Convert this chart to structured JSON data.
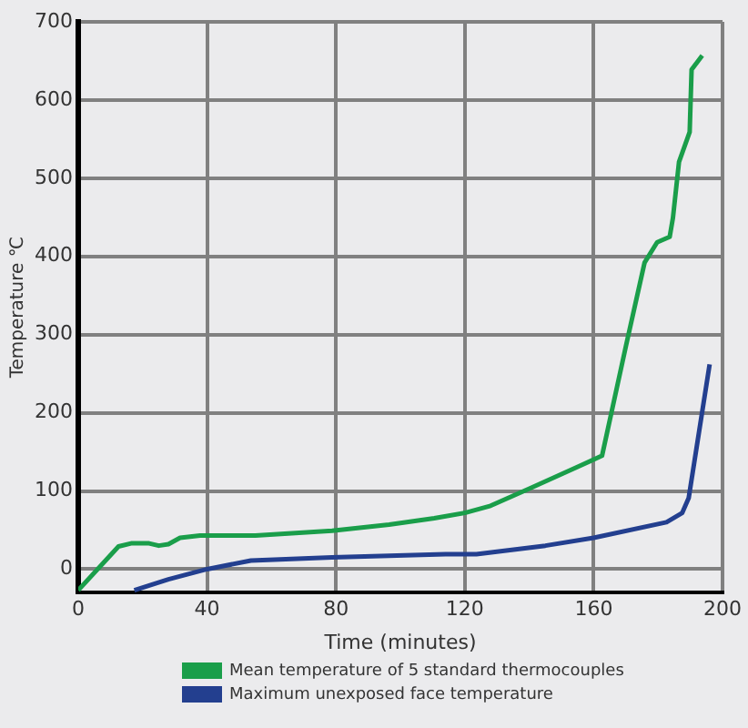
{
  "chart_data": {
    "type": "line",
    "xlabel": "Time (minutes)",
    "ylabel": "Temperature ℃",
    "xlim": [
      0,
      200
    ],
    "xticks": [
      0,
      40,
      80,
      120,
      160,
      200
    ],
    "ylim": [
      -30,
      700
    ],
    "yticks": [
      0,
      100,
      200,
      300,
      400,
      500,
      600,
      700
    ],
    "grid": true,
    "legend": "bottom",
    "marker": "none",
    "line_style": "solid",
    "series": [
      {
        "name": "Mean temperature of 5 standard thermocouples",
        "color": "#1a9e4a",
        "x": [
          0,
          12.5,
          16.4,
          22,
          25,
          28,
          31.6,
          37.8,
          55,
          78.8,
          96.5,
          110.5,
          120,
          128,
          140,
          153,
          162.6,
          170,
          175.8,
          179.7,
          183.6,
          184.6,
          186.5,
          189.8,
          190.4,
          193.7
        ],
        "values": [
          -27,
          29,
          33,
          33,
          30,
          32,
          40,
          43,
          43,
          49,
          57,
          65,
          72,
          81,
          103,
          127,
          145,
          285,
          392,
          418,
          425,
          449,
          521,
          559,
          639,
          657
        ]
      },
      {
        "name": "Maximum unexposed face temperature",
        "color": "#233f8f",
        "x": [
          17.4,
          28,
          40,
          53.6,
          78.8,
          114,
          123.6,
          145,
          160,
          182.6,
          187.5,
          189.5,
          196
        ],
        "values": [
          -27,
          -13,
          0,
          11,
          15,
          19,
          19,
          30,
          40,
          60,
          72,
          91,
          262
        ]
      }
    ]
  }
}
